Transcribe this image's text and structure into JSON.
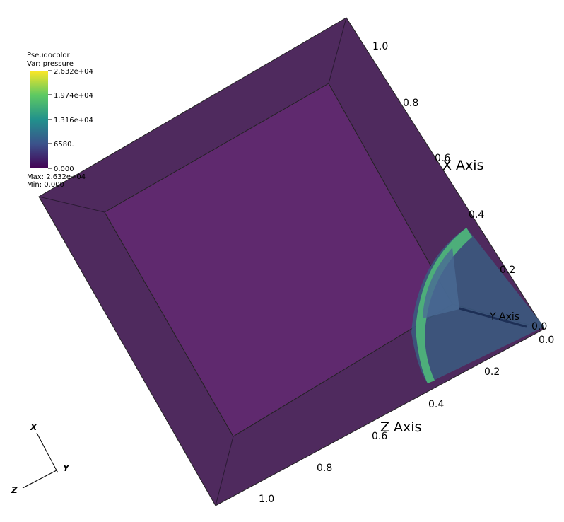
{
  "legend": {
    "title": "Pseudocolor",
    "variable": "Var: pressure",
    "ticks": [
      "2.632e+04",
      "1.974e+04",
      "1.316e+04",
      "6580.",
      "0.000"
    ],
    "max": "Max: 2.632e+04",
    "min": "Min: 0.000"
  },
  "axes": {
    "x": {
      "title": "X Axis",
      "ticks": [
        "1.0",
        "0.8",
        "0.6",
        "0.4",
        "0.2",
        "0.0"
      ]
    },
    "y": {
      "title": "Y Axis",
      "ticks": [
        "0.0"
      ]
    },
    "z": {
      "title": "Z Axis",
      "ticks": [
        "0.2",
        "0.4",
        "0.6",
        "0.8",
        "1.0"
      ]
    }
  },
  "triad": {
    "x": "X",
    "y": "Y",
    "z": "Z"
  }
}
